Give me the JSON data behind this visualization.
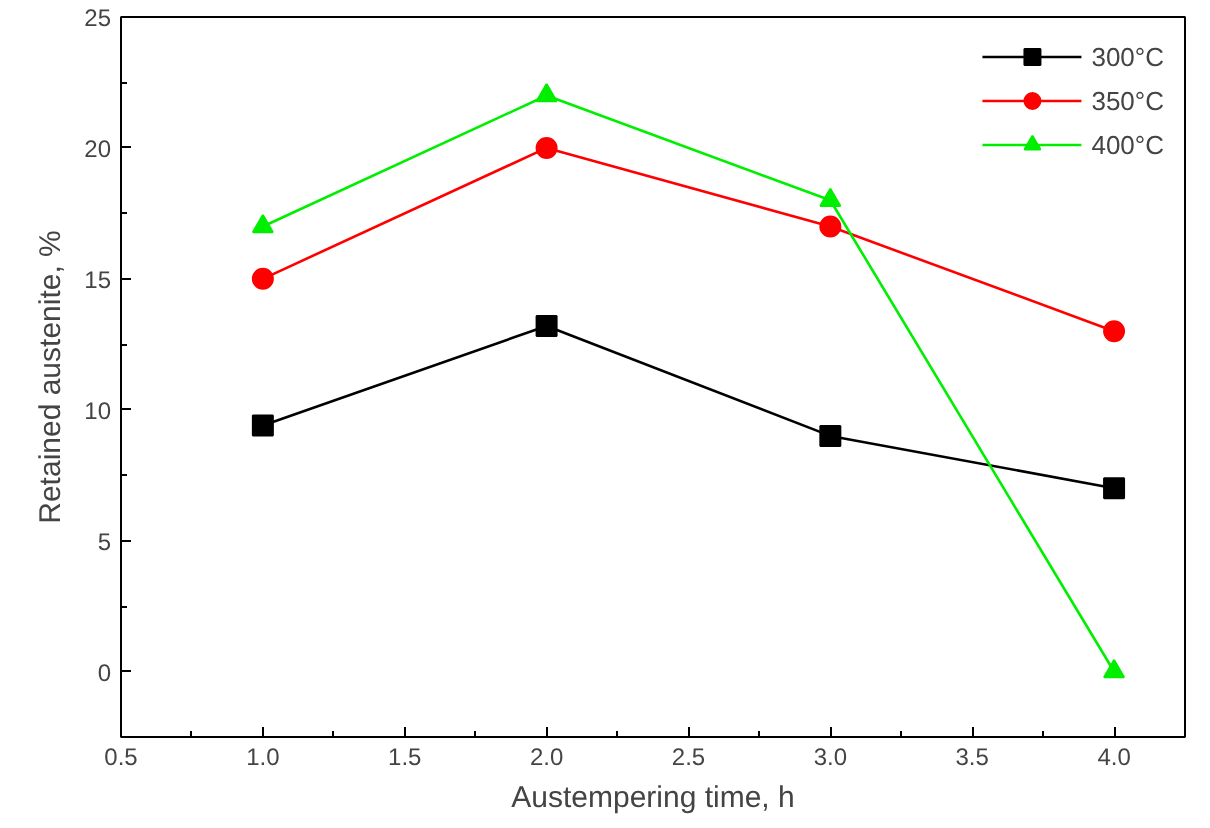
{
  "chart_data": {
    "type": "line",
    "xlabel": "Austempering time, h",
    "ylabel": "Retained austenite, %",
    "x": [
      1.0,
      2.0,
      3.0,
      4.0
    ],
    "series": [
      {
        "name": "300°C",
        "color": "#000000",
        "marker": "square",
        "values": [
          9.4,
          13.2,
          9.0,
          7.0
        ]
      },
      {
        "name": "350°C",
        "color": "#ff0000",
        "marker": "circle",
        "values": [
          15,
          20,
          17,
          13
        ]
      },
      {
        "name": "400°C",
        "color": "#00ee00",
        "marker": "triangle",
        "values": [
          17,
          22,
          18,
          0
        ]
      }
    ],
    "xlim": [
      0.5,
      4.25
    ],
    "ylim": [
      -2.5,
      25
    ],
    "xticks": [
      {
        "value": 0.5,
        "label": "0.5"
      },
      {
        "value": 1,
        "label": "1.0"
      },
      {
        "value": 1.5,
        "label": "1.5"
      },
      {
        "value": 2,
        "label": "2.0"
      },
      {
        "value": 2.5,
        "label": "2.5"
      },
      {
        "value": 3,
        "label": "3.0"
      },
      {
        "value": 3.5,
        "label": "3.5"
      },
      {
        "value": 4,
        "label": "4.0"
      }
    ],
    "yticks": [
      0,
      5,
      10,
      15,
      20,
      25
    ],
    "grid": false,
    "legend": "top right",
    "line_style": "solid"
  }
}
